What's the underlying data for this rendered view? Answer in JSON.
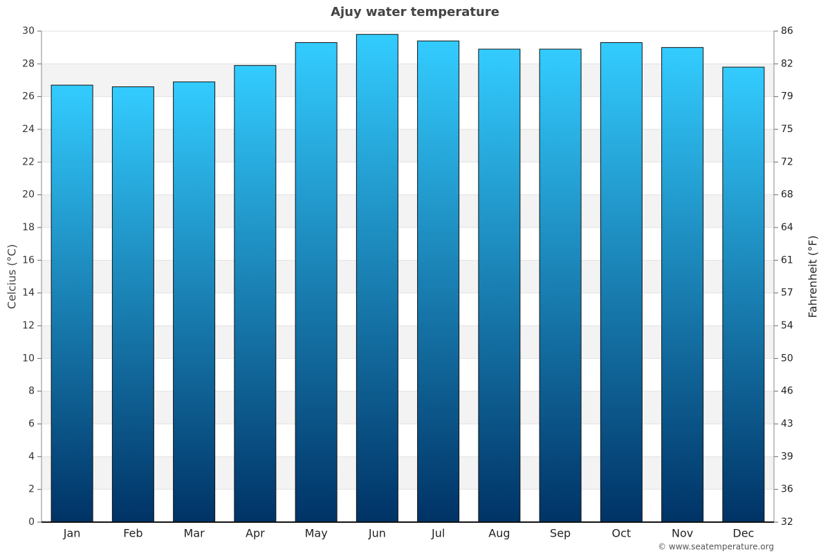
{
  "chart_data": {
    "type": "bar",
    "title": "Ajuy water temperature",
    "categories": [
      "Jan",
      "Feb",
      "Mar",
      "Apr",
      "May",
      "Jun",
      "Jul",
      "Aug",
      "Sep",
      "Oct",
      "Nov",
      "Dec"
    ],
    "values": [
      26.7,
      26.6,
      26.9,
      27.9,
      29.3,
      29.8,
      29.4,
      28.9,
      28.9,
      29.3,
      29.0,
      27.8
    ],
    "color": [
      "#33ccff",
      "#003366"
    ],
    "ylabel": "Celcius (°C)",
    "y2label": "Fahrenheit (°F)",
    "ylim": [
      0,
      30
    ],
    "yticks": [
      0,
      2,
      4,
      6,
      8,
      10,
      12,
      14,
      16,
      18,
      20,
      22,
      24,
      26,
      28,
      30
    ],
    "y2lim": [
      32,
      86
    ],
    "y2ticks": [
      32,
      {
        "value": 35.6,
        "label": "36"
      },
      {
        "value": 39.2,
        "label": "39"
      },
      {
        "value": 42.8,
        "label": "43"
      },
      {
        "value": 46.4,
        "label": "46"
      },
      50,
      {
        "value": 53.6,
        "label": "54"
      },
      {
        "value": 57.2,
        "label": "57"
      },
      {
        "value": 60.8,
        "label": "61"
      },
      {
        "value": 64.4,
        "label": "64"
      },
      68,
      {
        "value": 71.6,
        "label": "72"
      },
      {
        "value": 75.2,
        "label": "75"
      },
      {
        "value": 78.8,
        "label": "79"
      },
      {
        "value": 82.4,
        "label": "82"
      },
      86
    ],
    "grid": true,
    "credit": "© www.seatemperature.org"
  }
}
